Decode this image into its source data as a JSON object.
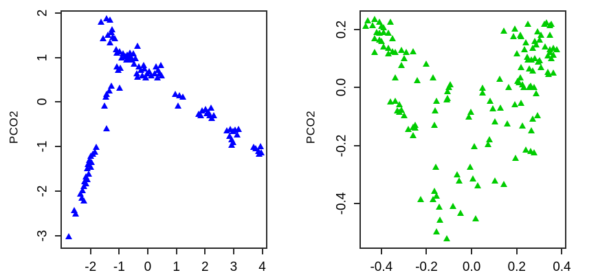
{
  "figure": {
    "background": "#ffffff",
    "axis_color": "#2b2b2b",
    "text_color": "#000000"
  },
  "chart_data": [
    {
      "type": "scatter",
      "panel": "left",
      "title": "",
      "xlabel": "",
      "ylabel": "PCO2",
      "legend": null,
      "grid": false,
      "marker": "filled-triangle",
      "marker_color": "#0000ff",
      "xlim": [
        -3.05,
        4.18
      ],
      "ylim": [
        -3.3,
        2.06
      ],
      "xticks": {
        "values": [
          -2,
          -1,
          0,
          1,
          2,
          3,
          4
        ],
        "labels": [
          "-2",
          "-1",
          "0",
          "1",
          "2",
          "3",
          "4"
        ]
      },
      "yticks": {
        "values": [
          2,
          1,
          0,
          -1,
          -2,
          -3
        ],
        "labels": [
          "2",
          "1",
          "0",
          "-1",
          "-2",
          "-3"
        ]
      },
      "points": [
        [
          -1.64,
          1.8
        ],
        [
          -1.44,
          1.88
        ],
        [
          -1.33,
          1.85
        ],
        [
          -1.56,
          1.42
        ],
        [
          -1.39,
          1.5
        ],
        [
          -1.28,
          1.57
        ],
        [
          -1.25,
          1.63
        ],
        [
          -1.22,
          1.46
        ],
        [
          -1.15,
          1.42
        ],
        [
          -1.31,
          1.33
        ],
        [
          -1.11,
          1.18
        ],
        [
          -1.07,
          1.1
        ],
        [
          -0.99,
          1.13
        ],
        [
          -0.91,
          1.0
        ],
        [
          -0.87,
          1.08
        ],
        [
          -0.79,
          1.03
        ],
        [
          -0.75,
          0.95
        ],
        [
          -0.71,
          1.05
        ],
        [
          -0.67,
          0.98
        ],
        [
          -0.63,
          1.1
        ],
        [
          -0.59,
          1.03
        ],
        [
          -0.55,
          0.95
        ],
        [
          -0.51,
          1.08
        ],
        [
          -0.43,
          0.98
        ],
        [
          -0.35,
          1.26
        ],
        [
          -0.47,
          0.85
        ],
        [
          -1.07,
          0.79
        ],
        [
          -1.03,
          0.71
        ],
        [
          -0.95,
          0.76
        ],
        [
          -0.31,
          0.79
        ],
        [
          -0.23,
          0.71
        ],
        [
          -0.15,
          0.82
        ],
        [
          -0.11,
          0.74
        ],
        [
          -0.03,
          0.64
        ],
        [
          0.05,
          0.69
        ],
        [
          -0.39,
          0.64
        ],
        [
          -0.35,
          0.56
        ],
        [
          -0.19,
          0.59
        ],
        [
          -0.07,
          0.54
        ],
        [
          0.13,
          0.59
        ],
        [
          0.25,
          0.64
        ],
        [
          0.29,
          0.79
        ],
        [
          0.37,
          0.71
        ],
        [
          0.41,
          0.64
        ],
        [
          0.45,
          0.82
        ],
        [
          0.33,
          0.54
        ],
        [
          0.49,
          0.59
        ],
        [
          -1.27,
          0.36
        ],
        [
          -0.99,
          0.31
        ],
        [
          -1.43,
          0.18
        ],
        [
          -1.47,
          0.11
        ],
        [
          -1.35,
          0.26
        ],
        [
          -1.51,
          -0.09
        ],
        [
          -1.43,
          -0.6
        ],
        [
          0.96,
          0.18
        ],
        [
          1.1,
          0.15
        ],
        [
          1.22,
          0.11
        ],
        [
          1.06,
          -0.08
        ],
        [
          1.78,
          -0.27
        ],
        [
          1.9,
          -0.2
        ],
        [
          2.02,
          -0.16
        ],
        [
          2.12,
          -0.22
        ],
        [
          2.2,
          -0.14
        ],
        [
          2.24,
          -0.37
        ],
        [
          2.3,
          -0.31
        ],
        [
          1.85,
          -0.31
        ],
        [
          2.07,
          -0.26
        ],
        [
          2.16,
          -0.3
        ],
        [
          2.77,
          -0.64
        ],
        [
          2.89,
          -0.61
        ],
        [
          2.98,
          -0.66
        ],
        [
          3.06,
          -0.63
        ],
        [
          3.17,
          -0.61
        ],
        [
          2.86,
          -0.77
        ],
        [
          2.92,
          -0.84
        ],
        [
          2.97,
          -0.9
        ],
        [
          2.92,
          -0.97
        ],
        [
          3.12,
          -0.74
        ],
        [
          3.7,
          -1.02
        ],
        [
          3.76,
          -1.05
        ],
        [
          3.86,
          -1.1
        ],
        [
          3.9,
          -1.17
        ],
        [
          3.97,
          -1.14
        ],
        [
          3.94,
          -1.0
        ],
        [
          -1.79,
          -1.02
        ],
        [
          -1.85,
          -1.12
        ],
        [
          -1.91,
          -1.17
        ],
        [
          -1.99,
          -1.22
        ],
        [
          -2.04,
          -1.3
        ],
        [
          -1.96,
          -1.35
        ],
        [
          -2.08,
          -1.4
        ],
        [
          -2.0,
          -1.46
        ],
        [
          -2.12,
          -1.5
        ],
        [
          -2.07,
          -1.61
        ],
        [
          -2.15,
          -1.68
        ],
        [
          -2.11,
          -1.74
        ],
        [
          -2.2,
          -1.79
        ],
        [
          -2.16,
          -1.84
        ],
        [
          -2.24,
          -1.9
        ],
        [
          -2.28,
          -1.99
        ],
        [
          -2.36,
          -2.07
        ],
        [
          -2.31,
          -2.15
        ],
        [
          -2.23,
          -2.22
        ],
        [
          -2.56,
          -2.43
        ],
        [
          -2.51,
          -2.51
        ],
        [
          -2.76,
          -3.02
        ]
      ]
    },
    {
      "type": "scatter",
      "panel": "right",
      "title": "",
      "xlabel": "",
      "ylabel": "PCO2",
      "legend": null,
      "grid": false,
      "marker": "filled-triangle",
      "marker_color": "#00cc00",
      "xlim": [
        -0.497,
        0.42
      ],
      "ylim": [
        -0.555,
        0.265
      ],
      "xticks": {
        "values": [
          -0.4,
          -0.2,
          0,
          0.2,
          0.4
        ],
        "labels": [
          "-0.4",
          "-0.2",
          "0.0",
          "0.2",
          "0.4"
        ]
      },
      "yticks": {
        "values": [
          0.2,
          0,
          -0.2,
          -0.4
        ],
        "labels": [
          "0.2",
          "0.0",
          "-0.2",
          "-0.4"
        ]
      },
      "points": [
        [
          -0.46,
          0.23
        ],
        [
          -0.43,
          0.234
        ],
        [
          -0.41,
          0.226
        ],
        [
          -0.47,
          0.21
        ],
        [
          -0.44,
          0.214
        ],
        [
          -0.4,
          0.21
        ],
        [
          -0.39,
          0.206
        ],
        [
          -0.36,
          0.226
        ],
        [
          -0.42,
          0.19
        ],
        [
          -0.41,
          0.187
        ],
        [
          -0.39,
          0.19
        ],
        [
          -0.37,
          0.187
        ],
        [
          -0.43,
          0.167
        ],
        [
          -0.41,
          0.163
        ],
        [
          -0.4,
          0.159
        ],
        [
          -0.35,
          0.167
        ],
        [
          -0.39,
          0.139
        ],
        [
          -0.37,
          0.135
        ],
        [
          -0.35,
          0.124
        ],
        [
          -0.43,
          0.12
        ],
        [
          -0.37,
          0.116
        ],
        [
          -0.34,
          0.12
        ],
        [
          -0.31,
          0.128
        ],
        [
          -0.29,
          0.12
        ],
        [
          -0.26,
          0.124
        ],
        [
          -0.3,
          0.1
        ],
        [
          -0.31,
          0.076
        ],
        [
          -0.2,
          0.08
        ],
        [
          -0.34,
          0.033
        ],
        [
          -0.24,
          0.025
        ],
        [
          -0.17,
          0.033
        ],
        [
          -0.095,
          0.009
        ],
        [
          -0.36,
          -0.05
        ],
        [
          -0.34,
          -0.046
        ],
        [
          -0.32,
          -0.058
        ],
        [
          -0.33,
          -0.081
        ],
        [
          -0.32,
          -0.085
        ],
        [
          -0.31,
          -0.077
        ],
        [
          -0.3,
          -0.097
        ],
        [
          -0.28,
          -0.144
        ],
        [
          -0.26,
          -0.136
        ],
        [
          -0.25,
          -0.129
        ],
        [
          -0.25,
          -0.14
        ],
        [
          -0.26,
          -0.164
        ],
        [
          -0.106,
          -0.014
        ],
        [
          -0.156,
          -0.046
        ],
        [
          -0.106,
          -0.038
        ],
        [
          -0.161,
          -0.081
        ],
        [
          -0.166,
          -0.129
        ],
        [
          -0.1,
          0.001
        ],
        [
          -0.11,
          -0.042
        ],
        [
          -0.014,
          -0.101
        ],
        [
          -0.003,
          -0.085
        ],
        [
          -0.16,
          -0.274
        ],
        [
          -0.008,
          -0.273
        ],
        [
          -0.064,
          -0.3
        ],
        [
          -0.054,
          -0.32
        ],
        [
          0.007,
          -0.314
        ],
        [
          0.027,
          -0.337
        ],
        [
          0.103,
          -0.322
        ],
        [
          0.144,
          -0.333
        ],
        [
          -0.165,
          -0.357
        ],
        [
          -0.155,
          -0.373
        ],
        [
          -0.226,
          -0.385
        ],
        [
          -0.17,
          -0.385
        ],
        [
          -0.145,
          -0.412
        ],
        [
          -0.084,
          -0.408
        ],
        [
          -0.049,
          -0.432
        ],
        [
          -0.14,
          -0.456
        ],
        [
          0.017,
          -0.452
        ],
        [
          -0.155,
          -0.495
        ],
        [
          -0.11,
          -0.519
        ],
        [
          0.144,
          0.195
        ],
        [
          0.19,
          0.202
        ],
        [
          0.25,
          0.218
        ],
        [
          0.322,
          0.218
        ],
        [
          0.347,
          0.214
        ],
        [
          0.332,
          0.222
        ],
        [
          0.352,
          0.218
        ],
        [
          0.185,
          0.175
        ],
        [
          0.215,
          0.179
        ],
        [
          0.291,
          0.191
        ],
        [
          0.306,
          0.179
        ],
        [
          0.347,
          0.179
        ],
        [
          0.22,
          0.175
        ],
        [
          0.24,
          0.155
        ],
        [
          0.281,
          0.159
        ],
        [
          0.301,
          0.163
        ],
        [
          0.271,
          0.135
        ],
        [
          0.286,
          0.147
        ],
        [
          0.327,
          0.139
        ],
        [
          0.347,
          0.131
        ],
        [
          0.362,
          0.135
        ],
        [
          0.377,
          0.131
        ],
        [
          0.2,
          0.116
        ],
        [
          0.235,
          0.131
        ],
        [
          0.246,
          0.104
        ],
        [
          0.266,
          0.096
        ],
        [
          0.281,
          0.1
        ],
        [
          0.301,
          0.092
        ],
        [
          0.337,
          0.108
        ],
        [
          0.352,
          0.1
        ],
        [
          0.347,
          0.12
        ],
        [
          0.362,
          0.112
        ],
        [
          0.22,
          0.069
        ],
        [
          0.25,
          0.096
        ],
        [
          0.256,
          0.065
        ],
        [
          0.271,
          0.057
        ],
        [
          0.296,
          0.088
        ],
        [
          0.307,
          0.069
        ],
        [
          0.337,
          0.053
        ],
        [
          0.342,
          0.045
        ],
        [
          0.362,
          0.049
        ],
        [
          0.124,
          0.029
        ],
        [
          0.164,
          0.001
        ],
        [
          0.205,
          0.021
        ],
        [
          0.215,
          0.033
        ],
        [
          0.225,
          0.009
        ],
        [
          0.21,
          0.017
        ],
        [
          0.23,
          0.001
        ],
        [
          0.256,
          0.001
        ],
        [
          0.261,
          0.005
        ],
        [
          0.276,
          0.001
        ],
        [
          0.048,
          -0.002
        ],
        [
          0.286,
          -0.022
        ],
        [
          0.078,
          -0.18
        ],
        [
          0.073,
          -0.196
        ],
        [
          0.012,
          -0.203
        ],
        [
          0.24,
          -0.215
        ],
        [
          0.261,
          -0.219
        ],
        [
          0.276,
          -0.223
        ],
        [
          0.195,
          -0.243
        ],
        [
          0.103,
          -0.117
        ],
        [
          0.159,
          -0.125
        ],
        [
          0.093,
          -0.073
        ],
        [
          0.129,
          -0.07
        ],
        [
          0.19,
          -0.058
        ],
        [
          0.048,
          -0.018
        ],
        [
          0.083,
          -0.046
        ],
        [
          0.22,
          -0.054
        ],
        [
          0.291,
          -0.097
        ],
        [
          0.271,
          -0.109
        ],
        [
          0.225,
          -0.132
        ],
        [
          0.266,
          -0.148
        ]
      ]
    }
  ]
}
